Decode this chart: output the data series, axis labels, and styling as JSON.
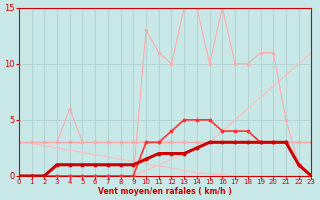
{
  "x": [
    0,
    1,
    2,
    3,
    4,
    5,
    6,
    7,
    8,
    9,
    10,
    11,
    12,
    13,
    14,
    15,
    16,
    17,
    18,
    19,
    20,
    21,
    22,
    23
  ],
  "bg_color": "#c8e8e8",
  "grid_color": "#aacccc",
  "axis_color": "#cc0000",
  "label_color": "#cc0000",
  "tick_color": "#cc0000",
  "xlabel": "Vent moyen/en rafales ( km/h )",
  "xlim": [
    0,
    23
  ],
  "ylim": [
    0,
    15
  ],
  "yticks": [
    0,
    5,
    10,
    15
  ],
  "xticks": [
    0,
    1,
    2,
    3,
    4,
    5,
    6,
    7,
    8,
    9,
    10,
    11,
    12,
    13,
    14,
    15,
    16,
    17,
    18,
    19,
    20,
    21,
    22,
    23
  ],
  "series": [
    {
      "y": [
        3,
        3,
        3,
        3,
        3,
        3,
        3,
        3,
        3,
        3,
        3,
        3,
        3,
        3,
        3,
        3,
        3,
        3,
        3,
        3,
        3,
        3,
        3,
        3
      ],
      "color": "#ff9999",
      "lw": 0.8,
      "marker": "o",
      "ms": 1.5,
      "zorder": 2
    },
    {
      "y": [
        3,
        3,
        3,
        3,
        6,
        3,
        3,
        3,
        3,
        3,
        3,
        3,
        3,
        3,
        3,
        3,
        3,
        3,
        3,
        3,
        3,
        3,
        3,
        3
      ],
      "color": "#ffaaaa",
      "lw": 0.8,
      "marker": "o",
      "ms": 1.5,
      "zorder": 2
    },
    {
      "y": [
        0,
        0,
        0,
        0,
        0,
        0,
        0,
        0,
        0,
        0,
        0.5,
        1,
        1.5,
        2,
        2.5,
        3,
        4,
        5,
        6,
        7,
        8,
        9,
        10,
        11
      ],
      "color": "#ffbbbb",
      "lw": 0.8,
      "marker": null,
      "ms": 0,
      "zorder": 1
    },
    {
      "y": [
        3,
        2.9,
        2.7,
        2.5,
        2.3,
        2.1,
        1.9,
        1.7,
        1.5,
        1.3,
        1.1,
        0.9,
        0.7,
        0.5,
        0.3,
        0.2,
        0.1,
        0,
        0,
        0,
        0,
        0,
        0,
        0
      ],
      "color": "#ffbbbb",
      "lw": 0.8,
      "marker": null,
      "ms": 0,
      "zorder": 1
    },
    {
      "y": [
        0,
        0,
        0,
        0,
        0,
        0,
        0,
        0,
        0,
        0,
        13,
        11,
        10,
        15,
        15,
        10,
        15,
        10,
        10,
        11,
        11,
        5,
        1,
        0
      ],
      "color": "#ffaaaa",
      "lw": 0.8,
      "marker": "o",
      "ms": 1.5,
      "zorder": 2
    },
    {
      "y": [
        0,
        0,
        0,
        0,
        0,
        0,
        0,
        0,
        0,
        0,
        3,
        3,
        4,
        5,
        5,
        5,
        4,
        4,
        4,
        3,
        3,
        3,
        1,
        0
      ],
      "color": "#ff3333",
      "lw": 1.2,
      "marker": "o",
      "ms": 1.8,
      "zorder": 3
    },
    {
      "y": [
        0,
        0,
        0,
        1,
        1,
        1,
        1,
        1,
        1,
        1,
        1.5,
        2,
        2,
        2,
        2.5,
        3,
        3,
        3,
        3,
        3,
        3,
        3,
        1,
        0
      ],
      "color": "#cc0000",
      "lw": 2.2,
      "marker": "o",
      "ms": 1.8,
      "zorder": 4
    }
  ]
}
